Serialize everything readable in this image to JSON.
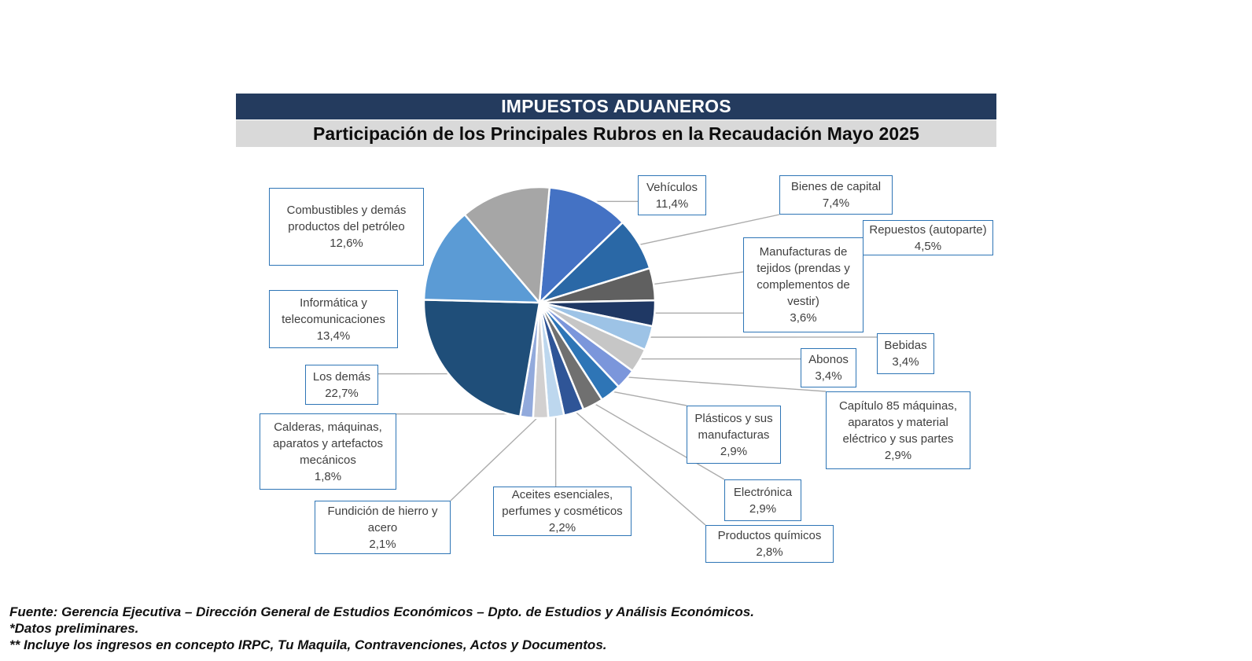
{
  "header": {
    "title": "IMPUESTOS ADUANEROS",
    "subtitle": "Participación de los Principales Rubros en la Recaudación Mayo 2025"
  },
  "chart_data": {
    "type": "pie",
    "title": "IMPUESTOS ADUANEROS",
    "subtitle": "Participación de los Principales Rubros en la Recaudación Mayo 2025",
    "unit": "%",
    "direction": "clockwise",
    "start_angle_deg": 5,
    "legend_position": "callout-labels",
    "slices": [
      {
        "id": "vehiculos",
        "label": "Vehículos",
        "value": 11.4,
        "display": "11,4%",
        "color": "#4472C4"
      },
      {
        "id": "bienes-de-capital",
        "label": "Bienes de capital",
        "value": 7.4,
        "display": "7,4%",
        "color": "#2A68A6"
      },
      {
        "id": "repuestos",
        "label": "Repuestos (autoparte)",
        "value": 4.5,
        "display": "4,5%",
        "color": "#606060"
      },
      {
        "id": "manufacturas",
        "label": "Manufacturas de tejidos (prendas y complementos de vestir)",
        "value": 3.6,
        "display": "3,6%",
        "color": "#1F3864"
      },
      {
        "id": "bebidas",
        "label": "Bebidas",
        "value": 3.4,
        "display": "3,4%",
        "color": "#9DC3E6"
      },
      {
        "id": "abonos",
        "label": "Abonos",
        "value": 3.4,
        "display": "3,4%",
        "color": "#C6C6C6"
      },
      {
        "id": "capitulo-85",
        "label": "Capítulo 85 máquinas, aparatos y material eléctrico y sus partes",
        "value": 2.9,
        "display": "2,9%",
        "color": "#7B96DB"
      },
      {
        "id": "plasticos",
        "label": "Plásticos y sus manufacturas",
        "value": 2.9,
        "display": "2,9%",
        "color": "#2E75B6"
      },
      {
        "id": "electronica",
        "label": "Electrónica",
        "value": 2.9,
        "display": "2,9%",
        "color": "#707070"
      },
      {
        "id": "productos-quimicos",
        "label": "Productos químicos",
        "value": 2.8,
        "display": "2,8%",
        "color": "#2F5597"
      },
      {
        "id": "aceites",
        "label": "Aceites esenciales, perfumes y cosméticos",
        "value": 2.2,
        "display": "2,2%",
        "color": "#BDD7EE"
      },
      {
        "id": "fundicion",
        "label": "Fundición de hierro y acero",
        "value": 2.1,
        "display": "2,1%",
        "color": "#D2D0D0"
      },
      {
        "id": "calderas",
        "label": "Calderas, máquinas, aparatos y artefactos mecánicos",
        "value": 1.8,
        "display": "1,8%",
        "color": "#92AADC"
      },
      {
        "id": "los-demas",
        "label": "Los demás",
        "value": 22.7,
        "display": "22,7%",
        "color": "#1F4E79"
      },
      {
        "id": "informatica",
        "label": "Informática y telecomunicaciones",
        "value": 13.4,
        "display": "13,4%",
        "color": "#5B9BD5"
      },
      {
        "id": "combustibles",
        "label": "Combustibles y demás productos del petróleo",
        "value": 12.6,
        "display": "12,6%",
        "color": "#A6A6A6"
      }
    ]
  },
  "footnotes": {
    "fuente": "Fuente: Gerencia Ejecutiva – Dirección General de Estudios Económicos – Dpto. de Estudios y Análisis Económicos.",
    "note1": "*Datos preliminares.",
    "note2": "** Incluye los ingresos en concepto IRPC, Tu Maquila, Contravenciones, Actos y Documentos."
  },
  "colors": {
    "title_bar_bg": "#243B5E",
    "subtitle_bar_bg": "#D9D9D9",
    "callout_border": "#2E75B6",
    "callout_text": "#3F3F3F",
    "leader_line": "#ACACAC",
    "slice_separator": "#FFFFFF"
  }
}
